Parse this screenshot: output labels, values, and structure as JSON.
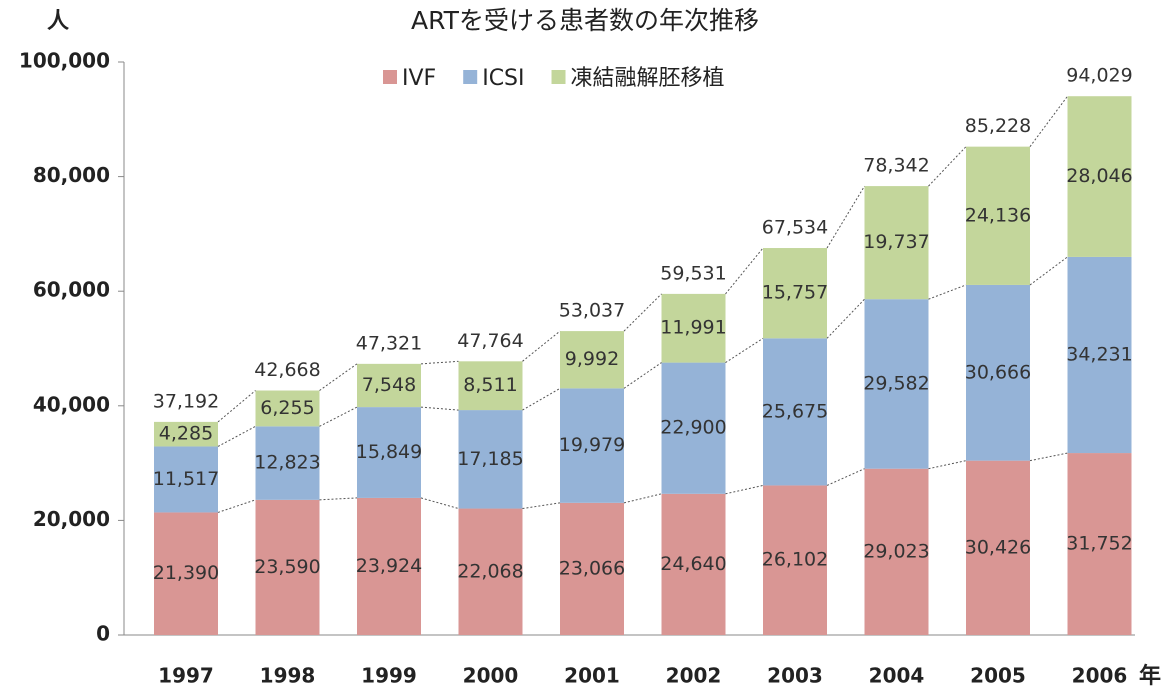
{
  "chart_data": {
    "type": "stacked_bar",
    "title": "ARTを受ける患者数の年次推移",
    "y_axis_label": "人",
    "x_axis_label": "年",
    "categories": [
      "1997",
      "1998",
      "1999",
      "2000",
      "2001",
      "2002",
      "2003",
      "2004",
      "2005",
      "2006"
    ],
    "series": [
      {
        "name": "IVF",
        "color": "#d99694",
        "values": [
          21390,
          23590,
          23924,
          22068,
          23066,
          24640,
          26102,
          29023,
          30426,
          31752
        ],
        "value_labels": [
          "21,390",
          "23,590",
          "23,924",
          "22,068",
          "23,066",
          "24,640",
          "26,102",
          "29,023",
          "30,426",
          "31,752"
        ]
      },
      {
        "name": "ICSI",
        "color": "#95b3d7",
        "values": [
          11517,
          12823,
          15849,
          17185,
          19979,
          22900,
          25675,
          29582,
          30666,
          34231
        ],
        "value_labels": [
          "11,517",
          "12,823",
          "15,849",
          "17,185",
          "19,979",
          "22,900",
          "25,675",
          "29,582",
          "30,666",
          "34,231"
        ]
      },
      {
        "name": "凍結融解胚移植",
        "color": "#c3d69b",
        "values": [
          4285,
          6255,
          7548,
          8511,
          9992,
          11991,
          15757,
          19737,
          24136,
          28046
        ],
        "value_labels": [
          "4,285",
          "6,255",
          "7,548",
          "8,511",
          "9,992",
          "11,991",
          "15,757",
          "19,737",
          "24,136",
          "28,046"
        ]
      }
    ],
    "totals": {
      "values": [
        37192,
        42668,
        47321,
        47764,
        53037,
        59531,
        67534,
        78342,
        85228,
        94029
      ],
      "value_labels": [
        "37,192",
        "42,668",
        "47,321",
        "47,764",
        "53,037",
        "59,531",
        "67,534",
        "78,342",
        "85,228",
        "94,029"
      ]
    },
    "ylim": [
      0,
      100000
    ],
    "yticks": [
      0,
      {
        "value": 20000,
        "label": "20,000"
      },
      {
        "value": 40000,
        "label": "40,000"
      },
      {
        "value": 60000,
        "label": "60,000"
      },
      {
        "value": 80000,
        "label": "80,000"
      },
      {
        "value": 100000,
        "label": "100,000"
      }
    ],
    "grid": false,
    "legend": "top"
  }
}
